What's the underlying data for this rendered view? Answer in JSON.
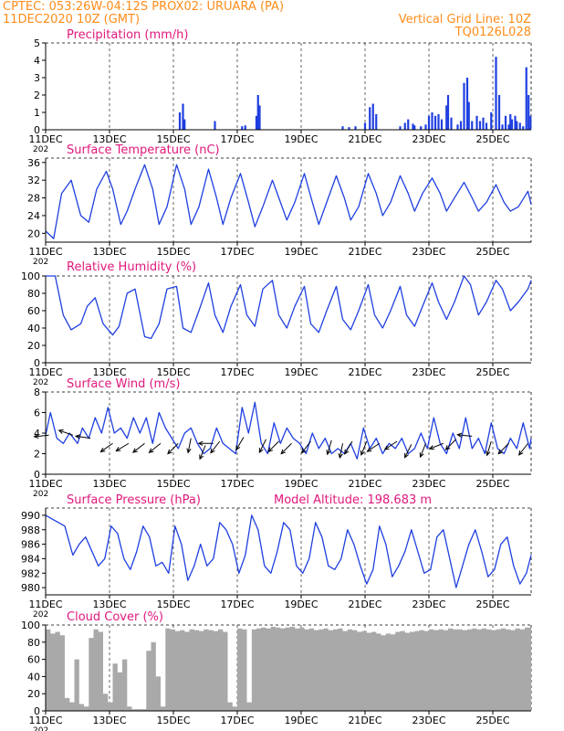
{
  "header": {
    "line1_left": "CPTEC:   053:26W-04:12S   PROX02: URUARA (PA)",
    "line2_left": "11DEC2020 10Z (GMT)",
    "line2_right": "Vertical Grid Line: 10Z",
    "line3_right": "TQ0126L028"
  },
  "colors": {
    "header": "#ff8c1a",
    "title": "#e0187c",
    "line": "#1f3fe0",
    "bar": "#1f3fe0",
    "cloud": "#a9a9a9",
    "wind_arrow": "#000000",
    "grid": "#000000"
  },
  "x_axis": {
    "tick_labels": [
      "11DEC",
      "13DEC",
      "15DEC",
      "17DEC",
      "19DEC",
      "21DEC",
      "23DEC",
      "25DEC"
    ],
    "tick_days": [
      0,
      2,
      4,
      6,
      8,
      10,
      12,
      14
    ],
    "range_days": [
      0,
      15.2
    ],
    "year_label": "202",
    "vertical_grid": "10Z, dashed"
  },
  "chart_data": [
    {
      "type": "bar",
      "id": "precip",
      "title": "Precipitation (mm/h)",
      "ylim": [
        0,
        5
      ],
      "yticks": [
        0,
        1,
        2,
        3,
        4,
        5
      ],
      "events": [
        [
          4.2,
          1.0
        ],
        [
          4.3,
          1.5
        ],
        [
          4.35,
          0.6
        ],
        [
          5.3,
          0.5
        ],
        [
          6.15,
          0.2
        ],
        [
          6.25,
          0.25
        ],
        [
          6.6,
          0.8
        ],
        [
          6.65,
          2.0
        ],
        [
          6.7,
          1.4
        ],
        [
          9.3,
          0.2
        ],
        [
          9.5,
          0.15
        ],
        [
          9.7,
          0.2
        ],
        [
          10.0,
          0.4
        ],
        [
          10.15,
          1.3
        ],
        [
          10.25,
          1.5
        ],
        [
          10.35,
          0.9
        ],
        [
          11.1,
          0.2
        ],
        [
          11.25,
          0.4
        ],
        [
          11.35,
          0.6
        ],
        [
          11.5,
          0.35
        ],
        [
          11.55,
          0.25
        ],
        [
          11.75,
          0.2
        ],
        [
          11.9,
          0.3
        ],
        [
          12.0,
          0.8
        ],
        [
          12.1,
          1.0
        ],
        [
          12.2,
          0.8
        ],
        [
          12.3,
          0.9
        ],
        [
          12.4,
          0.6
        ],
        [
          12.55,
          1.4
        ],
        [
          12.6,
          2.0
        ],
        [
          12.7,
          0.7
        ],
        [
          12.9,
          0.3
        ],
        [
          13.0,
          0.5
        ],
        [
          13.1,
          2.7
        ],
        [
          13.2,
          3.0
        ],
        [
          13.25,
          1.6
        ],
        [
          13.35,
          0.5
        ],
        [
          13.5,
          0.8
        ],
        [
          13.6,
          0.5
        ],
        [
          13.7,
          0.7
        ],
        [
          13.8,
          0.4
        ],
        [
          13.95,
          1.0
        ],
        [
          14.1,
          4.2
        ],
        [
          14.2,
          2.0
        ],
        [
          14.3,
          0.3
        ],
        [
          14.4,
          0.8
        ],
        [
          14.5,
          0.3
        ],
        [
          14.55,
          0.9
        ],
        [
          14.6,
          0.6
        ],
        [
          14.7,
          0.8
        ],
        [
          14.75,
          0.5
        ],
        [
          14.85,
          0.4
        ],
        [
          14.95,
          0.2
        ],
        [
          15.05,
          3.6
        ],
        [
          15.12,
          2.0
        ],
        [
          15.18,
          0.8
        ]
      ]
    },
    {
      "type": "line",
      "id": "temp",
      "title": "Surface Temperature (nC)",
      "ylim": [
        18,
        37
      ],
      "yticks": [
        20,
        24,
        28,
        32,
        36
      ],
      "x": [
        0.0,
        0.25,
        0.5,
        0.8,
        1.1,
        1.35,
        1.6,
        1.9,
        2.1,
        2.35,
        2.55,
        2.8,
        3.1,
        3.35,
        3.55,
        3.8,
        4.1,
        4.35,
        4.55,
        4.8,
        5.1,
        5.35,
        5.55,
        5.8,
        6.1,
        6.35,
        6.55,
        6.8,
        7.1,
        7.35,
        7.55,
        7.8,
        8.1,
        8.35,
        8.55,
        8.8,
        9.1,
        9.35,
        9.55,
        9.8,
        10.1,
        10.35,
        10.55,
        10.8,
        11.1,
        11.35,
        11.55,
        11.8,
        12.1,
        12.35,
        12.55,
        12.8,
        13.1,
        13.35,
        13.55,
        13.8,
        14.1,
        14.35,
        14.55,
        14.8,
        15.1,
        15.2
      ],
      "values": [
        20.5,
        18.8,
        29,
        32,
        24,
        22.5,
        30,
        34,
        30,
        22,
        25,
        30,
        35.5,
        30,
        22,
        26,
        35.5,
        30,
        22,
        26,
        34.5,
        28,
        22,
        28,
        33.5,
        27,
        21.5,
        26,
        32,
        27,
        23,
        27,
        33.5,
        27,
        22,
        27,
        33,
        28,
        23,
        26,
        33.5,
        29,
        24,
        27,
        33,
        29,
        25,
        29,
        32.5,
        29,
        25,
        28,
        31.5,
        28,
        25,
        27,
        31,
        27,
        25,
        26,
        29.5,
        26.5
      ]
    },
    {
      "type": "line",
      "id": "rh",
      "title": "Relative Humidity (%)",
      "ylim": [
        0,
        100
      ],
      "yticks": [
        0,
        20,
        40,
        60,
        80,
        100
      ],
      "x": [
        0.0,
        0.3,
        0.55,
        0.8,
        1.1,
        1.3,
        1.55,
        1.8,
        2.1,
        2.3,
        2.55,
        2.8,
        3.1,
        3.3,
        3.55,
        3.8,
        4.1,
        4.3,
        4.55,
        4.8,
        5.1,
        5.3,
        5.55,
        5.8,
        6.1,
        6.3,
        6.55,
        6.8,
        7.1,
        7.3,
        7.55,
        7.8,
        8.1,
        8.3,
        8.55,
        8.8,
        9.1,
        9.3,
        9.55,
        9.8,
        10.1,
        10.3,
        10.55,
        10.8,
        11.1,
        11.3,
        11.55,
        11.8,
        12.1,
        12.3,
        12.55,
        12.8,
        13.1,
        13.3,
        13.55,
        13.8,
        14.1,
        14.3,
        14.55,
        14.8,
        15.1,
        15.2
      ],
      "values": [
        100,
        100,
        55,
        38,
        45,
        65,
        75,
        45,
        32,
        42,
        80,
        85,
        30,
        28,
        45,
        85,
        88,
        40,
        35,
        60,
        92,
        55,
        35,
        65,
        90,
        55,
        42,
        85,
        95,
        55,
        40,
        65,
        88,
        45,
        35,
        60,
        88,
        50,
        38,
        60,
        90,
        55,
        40,
        60,
        88,
        55,
        42,
        65,
        92,
        70,
        50,
        70,
        100,
        90,
        55,
        70,
        95,
        85,
        60,
        70,
        85,
        95
      ]
    },
    {
      "type": "line",
      "id": "wind",
      "title": "Surface Wind (m/s)",
      "ylim": [
        0,
        8
      ],
      "yticks": [
        0,
        2,
        4,
        6,
        8
      ],
      "x": [
        0.0,
        0.15,
        0.35,
        0.55,
        0.75,
        1.0,
        1.15,
        1.35,
        1.55,
        1.75,
        1.95,
        2.15,
        2.35,
        2.55,
        2.75,
        2.95,
        3.15,
        3.35,
        3.55,
        3.75,
        3.95,
        4.15,
        4.35,
        4.55,
        4.75,
        4.95,
        5.15,
        5.35,
        5.55,
        5.75,
        5.95,
        6.15,
        6.35,
        6.55,
        6.75,
        6.95,
        7.15,
        7.35,
        7.55,
        7.75,
        7.95,
        8.15,
        8.35,
        8.55,
        8.75,
        8.95,
        9.15,
        9.35,
        9.55,
        9.75,
        9.95,
        10.15,
        10.35,
        10.55,
        10.75,
        10.95,
        11.15,
        11.35,
        11.55,
        11.75,
        11.95,
        12.15,
        12.35,
        12.55,
        12.75,
        12.95,
        13.15,
        13.35,
        13.55,
        13.75,
        13.95,
        14.15,
        14.35,
        14.55,
        14.75,
        14.95,
        15.15,
        15.2
      ],
      "values": [
        3.8,
        6.0,
        3.5,
        3.0,
        4.0,
        3.0,
        4.5,
        3.5,
        5.5,
        4.0,
        6.5,
        4.0,
        4.5,
        3.5,
        5.5,
        4.0,
        5.5,
        3.0,
        6.0,
        4.5,
        3.5,
        2.5,
        4.0,
        4.5,
        3.0,
        2.0,
        2.5,
        4.5,
        3.0,
        2.5,
        2.0,
        6.5,
        4.0,
        7.0,
        3.0,
        2.0,
        5.0,
        3.0,
        4.5,
        3.5,
        3.0,
        2.0,
        4.0,
        2.5,
        3.5,
        2.0,
        2.5,
        2.0,
        3.0,
        1.5,
        4.5,
        2.5,
        3.5,
        2.0,
        3.0,
        2.5,
        3.5,
        2.0,
        2.5,
        4.0,
        2.5,
        5.5,
        3.0,
        2.0,
        4.0,
        2.5,
        5.5,
        2.5,
        3.5,
        2.0,
        5.0,
        2.5,
        2.0,
        3.5,
        2.5,
        5.0,
        2.5,
        3.5
      ],
      "arrows": [
        {
          "x": 0.1,
          "y": 3.8,
          "dx": -1,
          "dy": -0.1
        },
        {
          "x": 0.85,
          "y": 3.8,
          "dx": -1,
          "dy": 0.35
        },
        {
          "x": 1.4,
          "y": 3.5,
          "dx": -1,
          "dy": 0.15
        },
        {
          "x": 2.1,
          "y": 3.0,
          "dx": -1,
          "dy": -0.7
        },
        {
          "x": 2.6,
          "y": 3.0,
          "dx": -1,
          "dy": -0.6
        },
        {
          "x": 3.1,
          "y": 3.0,
          "dx": -0.9,
          "dy": -0.7
        },
        {
          "x": 3.6,
          "y": 3.0,
          "dx": -1,
          "dy": -0.8
        },
        {
          "x": 4.15,
          "y": 3.0,
          "dx": -0.8,
          "dy": -0.8
        },
        {
          "x": 4.55,
          "y": 3.5,
          "dx": -0.2,
          "dy": -1
        },
        {
          "x": 5.0,
          "y": 2.8,
          "dx": -0.4,
          "dy": -1
        },
        {
          "x": 5.25,
          "y": 3.0,
          "dx": -1,
          "dy": 0
        },
        {
          "x": 5.45,
          "y": 3.2,
          "dx": -0.7,
          "dy": -0.9
        },
        {
          "x": 6.2,
          "y": 3.6,
          "dx": -0.6,
          "dy": -1
        },
        {
          "x": 6.9,
          "y": 3.4,
          "dx": -0.5,
          "dy": -1
        },
        {
          "x": 7.3,
          "y": 3.2,
          "dx": -0.8,
          "dy": -0.8
        },
        {
          "x": 7.7,
          "y": 3.0,
          "dx": -0.8,
          "dy": -0.8
        },
        {
          "x": 8.3,
          "y": 3.2,
          "dx": -0.7,
          "dy": -0.9
        },
        {
          "x": 8.95,
          "y": 3.3,
          "dx": -0.3,
          "dy": -1
        },
        {
          "x": 9.3,
          "y": 3.0,
          "dx": -0.2,
          "dy": -1
        },
        {
          "x": 9.6,
          "y": 3.2,
          "dx": -0.6,
          "dy": -1
        },
        {
          "x": 10.05,
          "y": 3.2,
          "dx": -0.4,
          "dy": -1
        },
        {
          "x": 10.45,
          "y": 3.0,
          "dx": -0.9,
          "dy": -0.6
        },
        {
          "x": 11.0,
          "y": 3.2,
          "dx": -0.9,
          "dy": -0.6
        },
        {
          "x": 11.45,
          "y": 2.9,
          "dx": -0.5,
          "dy": -1
        },
        {
          "x": 11.9,
          "y": 3.0,
          "dx": -0.4,
          "dy": -1
        },
        {
          "x": 12.45,
          "y": 3.0,
          "dx": -1,
          "dy": -0.4
        },
        {
          "x": 12.85,
          "y": 3.4,
          "dx": -0.8,
          "dy": -0.8
        },
        {
          "x": 13.35,
          "y": 3.7,
          "dx": -1,
          "dy": 0.1
        },
        {
          "x": 13.95,
          "y": 3.2,
          "dx": -0.3,
          "dy": -1
        },
        {
          "x": 14.5,
          "y": 3.0,
          "dx": -0.8,
          "dy": -0.8
        },
        {
          "x": 15.1,
          "y": 3.0,
          "dx": -0.7,
          "dy": -0.9
        }
      ]
    },
    {
      "type": "line",
      "id": "pres",
      "title": "Surface Pressure (hPa)",
      "subtitle": "Model Altitude: 198.683 m",
      "ylim": [
        979,
        991
      ],
      "yticks": [
        980,
        982,
        984,
        986,
        988,
        990
      ],
      "x": [
        0.0,
        0.2,
        0.4,
        0.6,
        0.85,
        1.05,
        1.25,
        1.45,
        1.65,
        1.85,
        2.05,
        2.25,
        2.45,
        2.65,
        2.85,
        3.05,
        3.25,
        3.45,
        3.65,
        3.85,
        4.05,
        4.25,
        4.45,
        4.65,
        4.85,
        5.05,
        5.25,
        5.45,
        5.65,
        5.85,
        6.05,
        6.25,
        6.45,
        6.65,
        6.85,
        7.05,
        7.25,
        7.45,
        7.65,
        7.85,
        8.05,
        8.25,
        8.45,
        8.65,
        8.85,
        9.05,
        9.25,
        9.45,
        9.65,
        9.85,
        10.05,
        10.25,
        10.45,
        10.65,
        10.85,
        11.05,
        11.25,
        11.45,
        11.65,
        11.85,
        12.05,
        12.25,
        12.45,
        12.65,
        12.85,
        13.05,
        13.25,
        13.45,
        13.65,
        13.85,
        14.05,
        14.25,
        14.45,
        14.65,
        14.85,
        15.05,
        15.2
      ],
      "values": [
        990,
        989.5,
        989,
        988.5,
        984.5,
        986,
        987,
        985,
        983,
        984,
        988.5,
        987.5,
        984,
        982.5,
        985,
        988.5,
        987,
        983,
        983.5,
        982,
        988.5,
        986,
        981,
        983,
        986,
        983,
        984,
        989,
        988,
        986,
        982,
        984.5,
        990,
        988,
        983,
        982,
        985,
        989,
        988,
        983,
        982,
        984,
        989,
        987,
        983,
        982.5,
        984,
        988,
        986,
        983,
        980.5,
        982.5,
        988.5,
        986,
        981.5,
        983,
        985,
        988,
        985,
        982,
        982.5,
        987,
        988,
        984,
        980,
        983,
        986,
        988,
        985,
        981.5,
        982.5,
        986,
        987,
        983,
        980.5,
        982,
        984.5
      ]
    },
    {
      "type": "area",
      "id": "cloud",
      "title": "Cloud Cover (%)",
      "ylim": [
        0,
        100
      ],
      "yticks": [
        0,
        20,
        40,
        60,
        80,
        100
      ],
      "x": [
        0.0,
        0.15,
        0.3,
        0.45,
        0.6,
        0.75,
        0.9,
        1.05,
        1.2,
        1.35,
        1.5,
        1.65,
        1.8,
        1.95,
        2.1,
        2.25,
        2.4,
        2.55,
        2.7,
        2.85,
        3.0,
        3.15,
        3.3,
        3.45,
        3.6,
        3.75,
        3.9,
        4.05,
        4.2,
        4.35,
        4.5,
        4.65,
        4.8,
        4.95,
        5.1,
        5.25,
        5.4,
        5.55,
        5.7,
        5.85,
        6.0,
        6.15,
        6.3,
        6.45,
        6.6,
        6.75,
        6.9,
        7.05,
        7.2,
        7.35,
        7.5,
        7.65,
        7.8,
        7.95,
        8.1,
        8.25,
        8.4,
        8.55,
        8.7,
        8.85,
        9.0,
        9.15,
        9.3,
        9.45,
        9.6,
        9.75,
        9.9,
        10.05,
        10.2,
        10.35,
        10.5,
        10.65,
        10.8,
        10.95,
        11.1,
        11.25,
        11.4,
        11.55,
        11.7,
        11.85,
        12.0,
        12.15,
        12.3,
        12.45,
        12.6,
        12.75,
        12.9,
        13.05,
        13.2,
        13.35,
        13.5,
        13.65,
        13.8,
        13.95,
        14.1,
        14.25,
        14.4,
        14.55,
        14.7,
        14.85,
        15.0,
        15.2
      ],
      "values": [
        95,
        90,
        92,
        88,
        15,
        10,
        60,
        8,
        5,
        85,
        95,
        92,
        20,
        10,
        55,
        45,
        60,
        5,
        2,
        2,
        2,
        70,
        80,
        40,
        5,
        96,
        95,
        93,
        94,
        92,
        95,
        94,
        93,
        95,
        94,
        93,
        95,
        92,
        10,
        5,
        96,
        95,
        10,
        95,
        96,
        97,
        96,
        98,
        97,
        96,
        97,
        98,
        96,
        97,
        95,
        96,
        94,
        95,
        96,
        94,
        95,
        96,
        93,
        95,
        94,
        92,
        93,
        91,
        92,
        90,
        88,
        90,
        89,
        92,
        93,
        91,
        92,
        93,
        94,
        93,
        95,
        94,
        95,
        94,
        96,
        95,
        95,
        94,
        95,
        96,
        95,
        96,
        95,
        94,
        95,
        96,
        95,
        94,
        96,
        95,
        97,
        96
      ]
    }
  ]
}
